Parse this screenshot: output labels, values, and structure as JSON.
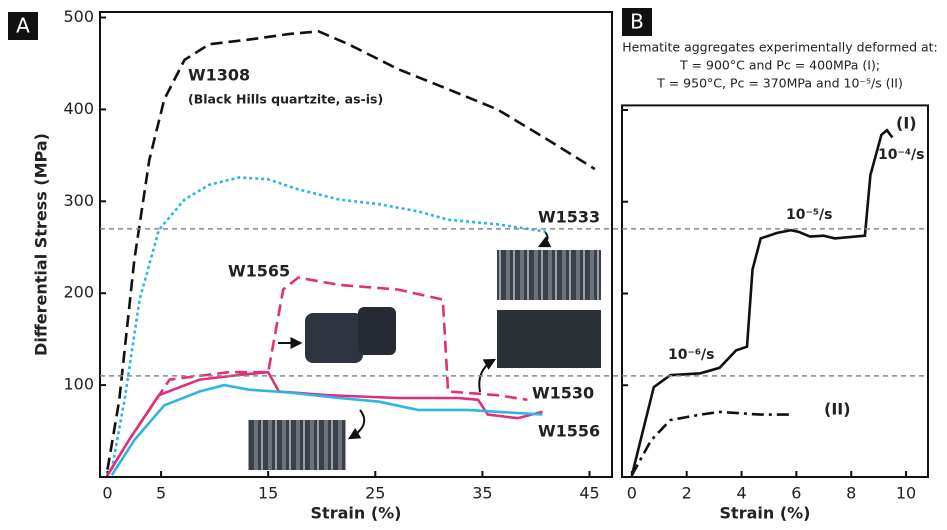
{
  "chart_data": [
    {
      "type": "line",
      "panel": "A",
      "xlabel": "Strain (%)",
      "ylabel": "Differential Stress (MPa)",
      "xlim": [
        -0.7,
        47.1
      ],
      "ylim": [
        0,
        506
      ],
      "xticks": [
        0,
        5,
        15,
        25,
        35,
        45
      ],
      "yticks": [
        100,
        200,
        300,
        400,
        500
      ],
      "hlines": [
        270,
        110
      ],
      "annotations": [
        "(Black Hills quartzite, as-is)"
      ],
      "series": [
        {
          "name": "W1308",
          "color": "#111111",
          "style": "dashed",
          "x": [
            0,
            1.1,
            2.5,
            3.9,
            5.3,
            7.2,
            9.5,
            13.2,
            16.9,
            19.7,
            22.5,
            27.1,
            31.8,
            36.4,
            41.1,
            45.5
          ],
          "values": [
            8,
            84,
            236,
            345,
            411,
            454,
            471,
            476,
            482,
            485,
            471,
            444,
            422,
            400,
            367,
            335
          ]
        },
        {
          "name": "W1533",
          "color": "#2bb5e8",
          "style": "dotted",
          "x": [
            0.4,
            1.6,
            3,
            4.8,
            7.2,
            9.5,
            12.3,
            15,
            17.8,
            21.6,
            25.3,
            29,
            31.8,
            36.4,
            40.9
          ],
          "values": [
            8,
            84,
            193,
            269,
            302,
            318,
            326,
            324,
            313,
            302,
            297,
            289,
            280,
            275,
            267
          ]
        },
        {
          "name": "W1565",
          "color": "#e0307a",
          "style": "dashed",
          "x": [
            0,
            2,
            5.8,
            11.3,
            15,
            16.4,
            17.8,
            21.6,
            27.1,
            31.3,
            31.8,
            36.4,
            39.2
          ],
          "values": [
            2,
            40,
            106,
            114,
            114,
            204,
            217,
            209,
            204,
            193,
            93,
            89,
            84
          ]
        },
        {
          "name": "W1530",
          "color": "#e0307a",
          "style": "solid",
          "x": [
            0,
            2,
            4.8,
            8.6,
            12.3,
            15,
            16,
            20.6,
            27.1,
            32.7,
            34.6,
            35.5,
            38.3,
            40.6
          ],
          "values": [
            2,
            40,
            89,
            106,
            111,
            114,
            93,
            89,
            86,
            86,
            84,
            68,
            64,
            71
          ]
        },
        {
          "name": "W1556",
          "color": "#2bb5e8",
          "style": "solid",
          "x": [
            0.4,
            2.5,
            5.3,
            8.6,
            10.9,
            13.2,
            16.9,
            21.6,
            25.3,
            29,
            33.6,
            36.4,
            40.6
          ],
          "values": [
            2,
            40,
            78,
            93,
            100,
            95,
            92,
            86,
            82,
            73,
            73,
            71,
            68
          ]
        }
      ]
    },
    {
      "type": "line",
      "panel": "B",
      "xlabel": "Strain (%)",
      "title_lines": [
        "Hematite aggregates experimentally deformed at:",
        "T = 900°C  and  Pc = 400MPa (I);",
        "T = 950°C,  Pc = 370MPa  and  10⁻⁵/s (II)"
      ],
      "xlim": [
        -0.36,
        10.8
      ],
      "ylim": [
        0,
        405
      ],
      "xticks": [
        0,
        2,
        4,
        6,
        8,
        10
      ],
      "annotations": [
        "10⁻⁶/s",
        "10⁻⁵/s",
        "10⁻⁴/s"
      ],
      "series": [
        {
          "name": "(I)",
          "color": "#111111",
          "style": "solid",
          "x": [
            0,
            0.5,
            0.8,
            1.4,
            2.5,
            3.2,
            3.8,
            4.2,
            4.4,
            4.7,
            5.3,
            5.8,
            6.1,
            6.5,
            7,
            7.4,
            8.5,
            8.7,
            9.1,
            9.3,
            9.5
          ],
          "values": [
            2,
            62,
            98,
            111,
            113,
            119,
            138,
            142,
            226,
            260,
            266,
            269,
            267,
            262,
            263,
            260,
            263,
            329,
            373,
            378,
            370
          ]
        },
        {
          "name": "(II)",
          "color": "#111111",
          "style": "dashdot",
          "x": [
            0,
            0.7,
            1.4,
            2.5,
            3.2,
            4.7,
            5.9
          ],
          "values": [
            2,
            40,
            62,
            68,
            71,
            68,
            68
          ]
        }
      ]
    }
  ]
}
